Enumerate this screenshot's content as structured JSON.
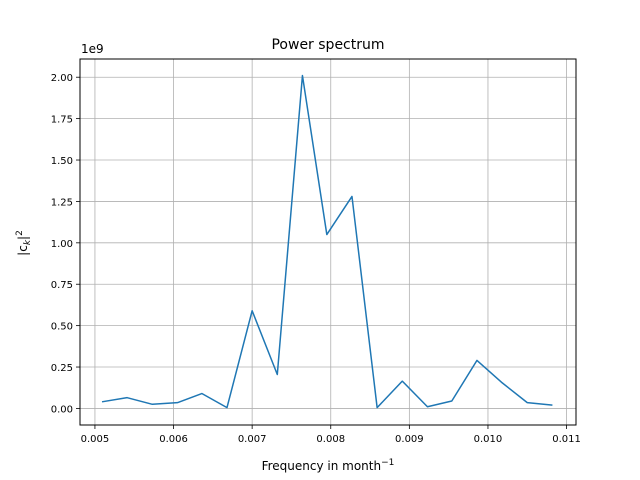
{
  "chart_data": {
    "type": "line",
    "title": "Power spectrum",
    "xlabel": "Frequency in month",
    "xlabel_superscript": "−1",
    "ylabel_base": "|c",
    "ylabel_sub": "k",
    "ylabel_end": "|",
    "ylabel_sup": "2",
    "y_offset_label": "1e9",
    "xlim": [
      0.00481,
      0.01112
    ],
    "ylim": [
      -0.1,
      2.11
    ],
    "x_ticks": [
      0.005,
      0.006,
      0.007,
      0.008,
      0.009,
      0.01,
      0.011
    ],
    "x_tick_labels": [
      "0.005",
      "0.006",
      "0.007",
      "0.008",
      "0.009",
      "0.010",
      "0.011"
    ],
    "y_ticks": [
      0.0,
      0.25,
      0.5,
      0.75,
      1.0,
      1.25,
      1.5,
      1.75,
      2.0
    ],
    "y_tick_labels": [
      "0.00",
      "0.25",
      "0.50",
      "0.75",
      "1.00",
      "1.25",
      "1.50",
      "1.75",
      "2.00"
    ],
    "grid": true,
    "line_color": "#1f77b4",
    "series": [
      {
        "x": [
          0.00509,
          0.00541,
          0.00573,
          0.00605,
          0.00636,
          0.00668,
          0.007,
          0.00732,
          0.00764,
          0.00795,
          0.00827,
          0.00859,
          0.00891,
          0.00923,
          0.00954,
          0.00986,
          0.01018,
          0.0105,
          0.01082
        ],
        "y": [
          0.04,
          0.065,
          0.025,
          0.035,
          0.09,
          0.005,
          0.59,
          0.205,
          2.01,
          1.05,
          1.28,
          0.005,
          0.165,
          0.01,
          0.045,
          0.29,
          0.155,
          0.035,
          0.02
        ]
      }
    ]
  }
}
